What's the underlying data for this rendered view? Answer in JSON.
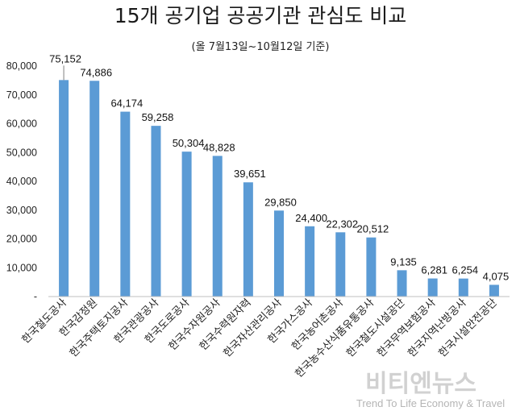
{
  "chart_data": {
    "type": "bar",
    "title": "15개 공기업 공공기관 관심도 비교",
    "subtitle": "(올 7월13일~10월12일 기준)",
    "categories": [
      "한국철도공사",
      "한국감정원",
      "한국주택토지공사",
      "한국관광공사",
      "한국도로공사",
      "한국수자원공사",
      "한국수력원자력",
      "한국자산관리공사",
      "한국가스공사",
      "한국농어촌공사",
      "한국농수산식품유통공사",
      "한국철도시설공단",
      "한국무역보험공사",
      "한국지역난방공사",
      "한국시설안전공단"
    ],
    "values": [
      75152,
      74886,
      64174,
      59258,
      50304,
      48828,
      39651,
      29850,
      24400,
      22302,
      20512,
      9135,
      6281,
      6254,
      4075
    ],
    "value_labels": [
      "75,152",
      "74,886",
      "64,174",
      "59,258",
      "50,304",
      "48,828",
      "39,651",
      "29,850",
      "24,400",
      "22,302",
      "20,512",
      "9,135",
      "6,281",
      "6,254",
      "4,075"
    ],
    "ylim": [
      0,
      80000
    ],
    "yticks": [
      0,
      10000,
      20000,
      30000,
      40000,
      50000,
      60000,
      70000,
      80000
    ],
    "ytick_labels": [
      "-",
      "10,000",
      "20,000",
      "30,000",
      "40,000",
      "50,000",
      "60,000",
      "70,000",
      "80,000"
    ],
    "bar_color": "#5b9bd5",
    "grid": false,
    "legend": "none"
  },
  "watermark": {
    "main": "비티엔뉴스",
    "sub": "Trend To Life Economy & Travel"
  }
}
